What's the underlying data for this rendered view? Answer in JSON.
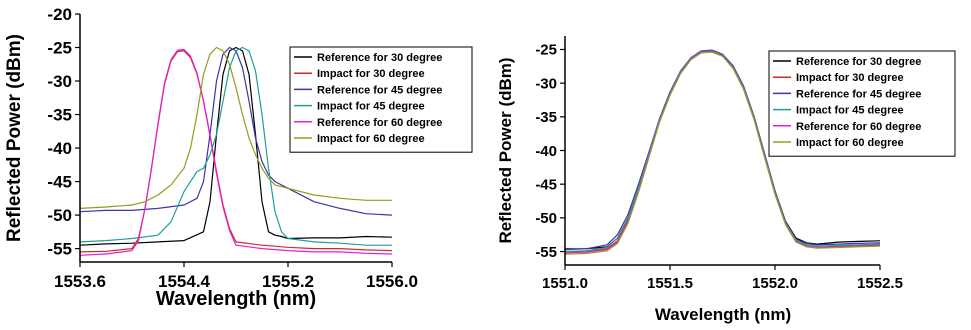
{
  "chart_data": [
    {
      "type": "line",
      "title": "",
      "xlabel": "Wavelength (nm)",
      "ylabel": "Reflected Power (dBm)",
      "xlim": [
        1553.6,
        1556.0
      ],
      "ylim": [
        -57,
        -20
      ],
      "xticks": [
        "1553.6",
        "1554.4",
        "1555.2",
        "1556.0"
      ],
      "xtick_values": [
        1553.6,
        1554.4,
        1555.2,
        1556.0
      ],
      "yticks": [
        "-20",
        "-25",
        "-30",
        "-35",
        "-40",
        "-45",
        "-50",
        "-55"
      ],
      "ytick_values": [
        -20,
        -25,
        -30,
        -35,
        -40,
        -45,
        -50,
        -55
      ],
      "grid": false,
      "legend_position": "top-right",
      "series": [
        {
          "name": "Reference for 30 degree",
          "color": "#000000",
          "x": [
            1553.6,
            1553.8,
            1554.0,
            1554.2,
            1554.4,
            1554.55,
            1554.6,
            1554.65,
            1554.7,
            1554.75,
            1554.8,
            1554.85,
            1554.9,
            1554.95,
            1555.0,
            1555.05,
            1555.1,
            1555.15,
            1555.2,
            1555.4,
            1555.6,
            1555.8,
            1556.0
          ],
          "y": [
            -54.5,
            -54.3,
            -54.2,
            -54.0,
            -53.8,
            -52.5,
            -48.0,
            -38.0,
            -29.0,
            -25.5,
            -25.0,
            -25.5,
            -29.0,
            -38.0,
            -48.0,
            -52.5,
            -53.0,
            -53.2,
            -53.5,
            -53.4,
            -53.4,
            -53.2,
            -53.3
          ]
        },
        {
          "name": "Impact for 30 degree",
          "color": "#d62728",
          "x": [
            1553.6,
            1553.8,
            1554.0,
            1554.05,
            1554.1,
            1554.15,
            1554.2,
            1554.25,
            1554.3,
            1554.35,
            1554.4,
            1554.45,
            1554.5,
            1554.55,
            1554.6,
            1554.65,
            1554.7,
            1554.75,
            1554.8,
            1555.0,
            1555.2,
            1555.4,
            1555.6,
            1555.8,
            1556.0
          ],
          "y": [
            -55.5,
            -55.4,
            -55.0,
            -53.5,
            -49.0,
            -43.0,
            -36.5,
            -30.5,
            -27.0,
            -25.6,
            -25.5,
            -26.5,
            -29.0,
            -33.0,
            -38.0,
            -43.5,
            -48.5,
            -52.0,
            -54.0,
            -54.5,
            -54.8,
            -55.0,
            -55.0,
            -55.2,
            -55.3
          ]
        },
        {
          "name": "Reference for 45 degree",
          "color": "#3b36a8",
          "x": [
            1553.6,
            1553.8,
            1554.0,
            1554.2,
            1554.4,
            1554.5,
            1554.55,
            1554.6,
            1554.65,
            1554.7,
            1554.75,
            1554.8,
            1554.85,
            1554.9,
            1554.95,
            1555.0,
            1555.05,
            1555.1,
            1555.2,
            1555.4,
            1555.6,
            1555.8,
            1556.0
          ],
          "y": [
            -49.5,
            -49.3,
            -49.3,
            -49.0,
            -48.5,
            -47.5,
            -45.0,
            -38.0,
            -30.0,
            -26.0,
            -25.0,
            -25.5,
            -28.0,
            -33.0,
            -38.5,
            -42.0,
            -44.0,
            -45.0,
            -46.0,
            -48.0,
            -49.0,
            -49.8,
            -50.0
          ]
        },
        {
          "name": "Impact for 45 degree",
          "color": "#1f9e9e",
          "x": [
            1553.6,
            1553.8,
            1554.0,
            1554.2,
            1554.3,
            1554.4,
            1554.5,
            1554.55,
            1554.6,
            1554.65,
            1554.7,
            1554.75,
            1554.8,
            1554.85,
            1554.9,
            1554.95,
            1555.0,
            1555.05,
            1555.1,
            1555.15,
            1555.2,
            1555.4,
            1555.6,
            1555.8,
            1556.0
          ],
          "y": [
            -54.0,
            -53.8,
            -53.5,
            -53.0,
            -51.0,
            -46.5,
            -43.5,
            -43.0,
            -41.0,
            -38.0,
            -33.0,
            -28.0,
            -25.5,
            -25.0,
            -25.5,
            -28.5,
            -35.0,
            -43.0,
            -49.5,
            -52.5,
            -53.5,
            -54.0,
            -54.2,
            -54.5,
            -54.5
          ]
        },
        {
          "name": "Reference for 60 degree",
          "color": "#e020d0",
          "x": [
            1553.6,
            1553.8,
            1554.0,
            1554.05,
            1554.1,
            1554.15,
            1554.2,
            1554.25,
            1554.3,
            1554.35,
            1554.4,
            1554.45,
            1554.5,
            1554.55,
            1554.6,
            1554.65,
            1554.7,
            1554.75,
            1554.8,
            1555.0,
            1555.2,
            1555.4,
            1555.6,
            1555.8,
            1556.0
          ],
          "y": [
            -56.0,
            -55.8,
            -55.3,
            -53.8,
            -49.0,
            -43.0,
            -36.3,
            -30.3,
            -26.8,
            -25.4,
            -25.3,
            -26.3,
            -28.8,
            -33.0,
            -38.2,
            -43.8,
            -48.8,
            -52.3,
            -54.5,
            -55.0,
            -55.3,
            -55.5,
            -55.5,
            -55.7,
            -55.8
          ]
        },
        {
          "name": "Impact for 60 degree",
          "color": "#9a9a1e",
          "x": [
            1553.6,
            1553.8,
            1554.0,
            1554.1,
            1554.2,
            1554.3,
            1554.4,
            1554.45,
            1554.5,
            1554.55,
            1554.6,
            1554.65,
            1554.7,
            1554.75,
            1554.8,
            1554.85,
            1554.9,
            1554.95,
            1555.0,
            1555.05,
            1555.1,
            1555.2,
            1555.4,
            1555.6,
            1555.8,
            1556.0
          ],
          "y": [
            -49.0,
            -48.8,
            -48.5,
            -48.0,
            -47.0,
            -45.5,
            -43.0,
            -40.0,
            -35.0,
            -29.0,
            -26.0,
            -25.0,
            -25.5,
            -27.5,
            -31.0,
            -35.0,
            -38.5,
            -41.0,
            -43.0,
            -44.5,
            -45.5,
            -46.0,
            -47.0,
            -47.5,
            -47.8,
            -47.8
          ]
        }
      ]
    },
    {
      "type": "line",
      "title": "",
      "xlabel": "Wavelength (nm)",
      "ylabel": "Reflected Power (dBm)",
      "xlim": [
        1551.0,
        1552.5
      ],
      "ylim": [
        -57,
        -23
      ],
      "xticks": [
        "1551.0",
        "1551.5",
        "1552.0",
        "1552.5"
      ],
      "xtick_values": [
        1551.0,
        1551.5,
        1552.0,
        1552.5
      ],
      "yticks": [
        "-25",
        "-30",
        "-35",
        "-40",
        "-45",
        "-50",
        "-55"
      ],
      "ytick_values": [
        -25,
        -30,
        -35,
        -40,
        -45,
        -50,
        -55
      ],
      "grid": false,
      "legend_position": "top-right",
      "series": [
        {
          "name": "Reference for 30 degree",
          "color": "#000000",
          "x": [
            1551.0,
            1551.1,
            1551.2,
            1551.25,
            1551.3,
            1551.35,
            1551.4,
            1551.45,
            1551.5,
            1551.55,
            1551.6,
            1551.65,
            1551.7,
            1551.75,
            1551.8,
            1551.85,
            1551.9,
            1551.95,
            1552.0,
            1552.05,
            1552.1,
            1552.15,
            1552.2,
            1552.3,
            1552.4,
            1552.5
          ],
          "y": [
            -54.6,
            -54.6,
            -54.3,
            -53.0,
            -50.0,
            -45.5,
            -40.5,
            -35.5,
            -31.5,
            -28.3,
            -26.3,
            -25.3,
            -25.2,
            -25.8,
            -27.5,
            -30.5,
            -35.0,
            -40.5,
            -46.0,
            -50.5,
            -53.0,
            -53.7,
            -53.9,
            -53.6,
            -53.5,
            -53.4
          ]
        },
        {
          "name": "Impact for 30 degree",
          "color": "#d62728",
          "x": [
            1551.0,
            1551.1,
            1551.2,
            1551.25,
            1551.3,
            1551.35,
            1551.4,
            1551.45,
            1551.5,
            1551.55,
            1551.6,
            1551.65,
            1551.7,
            1551.75,
            1551.8,
            1551.85,
            1551.9,
            1551.95,
            1552.0,
            1552.05,
            1552.1,
            1552.15,
            1552.2,
            1552.3,
            1552.4,
            1552.5
          ],
          "y": [
            -55.0,
            -55.0,
            -54.6,
            -53.4,
            -50.4,
            -45.8,
            -40.7,
            -35.6,
            -31.6,
            -28.4,
            -26.4,
            -25.4,
            -25.3,
            -25.9,
            -27.6,
            -30.7,
            -35.2,
            -40.8,
            -46.3,
            -50.8,
            -53.4,
            -54.0,
            -54.2,
            -54.2,
            -54.1,
            -54.0
          ]
        },
        {
          "name": "Reference for 45 degree",
          "color": "#3b36a8",
          "x": [
            1551.0,
            1551.1,
            1551.2,
            1551.25,
            1551.3,
            1551.35,
            1551.4,
            1551.45,
            1551.5,
            1551.55,
            1551.6,
            1551.65,
            1551.7,
            1551.75,
            1551.8,
            1551.85,
            1551.9,
            1551.95,
            1552.0,
            1552.05,
            1552.1,
            1552.15,
            1552.2,
            1552.3,
            1552.4,
            1552.5
          ],
          "y": [
            -54.7,
            -54.6,
            -54.0,
            -52.5,
            -49.5,
            -45.0,
            -40.2,
            -35.3,
            -31.3,
            -28.2,
            -26.2,
            -25.2,
            -25.1,
            -25.7,
            -27.4,
            -30.4,
            -34.9,
            -40.4,
            -46.0,
            -50.6,
            -53.2,
            -53.8,
            -54.0,
            -53.9,
            -53.8,
            -53.7
          ]
        },
        {
          "name": "Impact for 45 degree",
          "color": "#1f9e9e",
          "x": [
            1551.0,
            1551.1,
            1551.2,
            1551.25,
            1551.3,
            1551.35,
            1551.4,
            1551.45,
            1551.5,
            1551.55,
            1551.6,
            1551.65,
            1551.7,
            1551.75,
            1551.8,
            1551.85,
            1551.9,
            1551.95,
            1552.0,
            1552.05,
            1552.1,
            1552.15,
            1552.2,
            1552.3,
            1552.4,
            1552.5
          ],
          "y": [
            -55.0,
            -54.9,
            -54.4,
            -53.0,
            -50.0,
            -45.5,
            -40.5,
            -35.5,
            -31.5,
            -28.3,
            -26.3,
            -25.3,
            -25.2,
            -25.8,
            -27.6,
            -30.6,
            -35.1,
            -40.6,
            -46.2,
            -50.7,
            -53.3,
            -54.0,
            -54.2,
            -54.1,
            -54.0,
            -53.9
          ]
        },
        {
          "name": "Reference for 60 degree",
          "color": "#e020d0",
          "x": [
            1551.0,
            1551.1,
            1551.2,
            1551.25,
            1551.3,
            1551.35,
            1551.4,
            1551.45,
            1551.5,
            1551.55,
            1551.6,
            1551.65,
            1551.7,
            1551.75,
            1551.8,
            1551.85,
            1551.9,
            1551.95,
            1552.0,
            1552.05,
            1552.1,
            1552.15,
            1552.2,
            1552.3,
            1552.4,
            1552.5
          ],
          "y": [
            -55.2,
            -55.1,
            -54.7,
            -53.6,
            -50.6,
            -46.0,
            -40.8,
            -35.7,
            -31.7,
            -28.5,
            -26.4,
            -25.4,
            -25.3,
            -25.9,
            -27.7,
            -30.8,
            -35.3,
            -40.9,
            -46.4,
            -50.9,
            -53.5,
            -54.2,
            -54.4,
            -54.3,
            -54.2,
            -54.1
          ]
        },
        {
          "name": "Impact for 60 degree",
          "color": "#9a9a1e",
          "x": [
            1551.0,
            1551.1,
            1551.2,
            1551.25,
            1551.3,
            1551.35,
            1551.4,
            1551.45,
            1551.5,
            1551.55,
            1551.6,
            1551.65,
            1551.7,
            1551.75,
            1551.8,
            1551.85,
            1551.9,
            1551.95,
            1552.0,
            1552.05,
            1552.1,
            1552.15,
            1552.2,
            1552.3,
            1552.4,
            1552.5
          ],
          "y": [
            -55.4,
            -55.3,
            -54.9,
            -53.8,
            -50.8,
            -46.2,
            -41.0,
            -35.8,
            -31.8,
            -28.6,
            -26.5,
            -25.5,
            -25.4,
            -26.0,
            -27.8,
            -30.9,
            -35.4,
            -41.0,
            -46.5,
            -51.0,
            -53.6,
            -54.3,
            -54.5,
            -54.4,
            -54.3,
            -54.2
          ]
        }
      ]
    }
  ]
}
